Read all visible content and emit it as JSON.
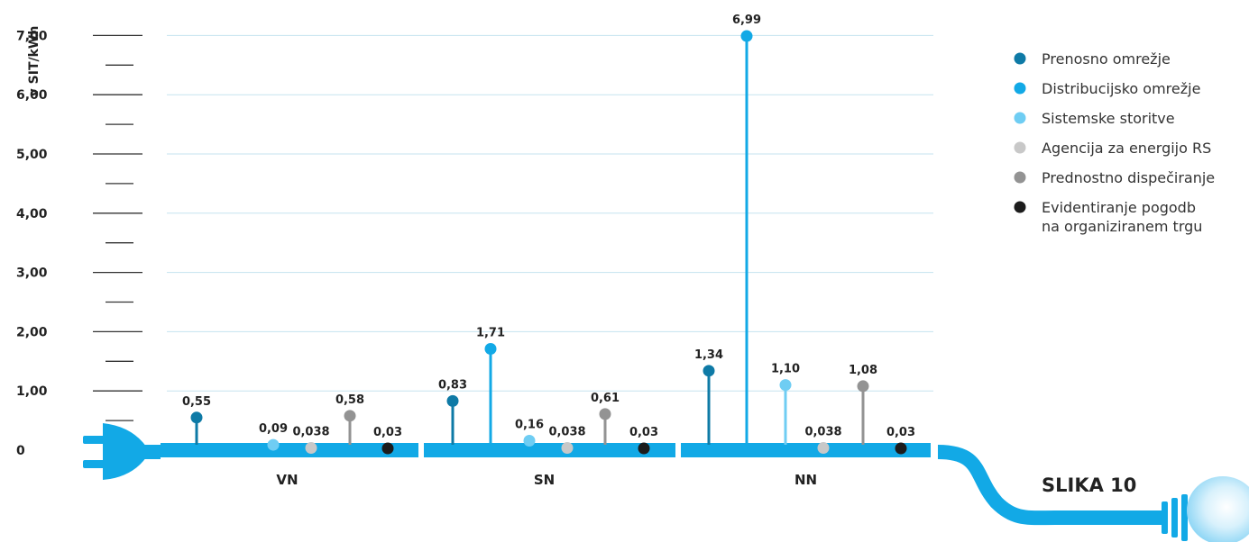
{
  "chart_data": {
    "type": "lollipop",
    "ylabel": "v SIT/kWh",
    "ylim": [
      0,
      7
    ],
    "yticks": [
      {
        "value": 0,
        "label": "0"
      },
      {
        "value": 1,
        "label": "1,00"
      },
      {
        "value": 2,
        "label": "2,00"
      },
      {
        "value": 3,
        "label": "3,00"
      },
      {
        "value": 4,
        "label": "4,00"
      },
      {
        "value": 5,
        "label": "5,00"
      },
      {
        "value": 6,
        "label": "6,00"
      },
      {
        "value": 7,
        "label": "7,00"
      }
    ],
    "grid": true,
    "legend_position": "top-right",
    "categories": [
      "VN",
      "SN",
      "NN"
    ],
    "series": [
      {
        "name": "Prenosno omrežje",
        "color": "#0e7aa6",
        "values": [
          0.55,
          0.83,
          1.34
        ],
        "labels": [
          "0,55",
          "0,83",
          "1,34"
        ]
      },
      {
        "name": "Distribucijsko omrežje",
        "color": "#12a9e6",
        "values": [
          null,
          1.71,
          6.99
        ],
        "labels": [
          "",
          "1,71",
          "6,99"
        ]
      },
      {
        "name": "Sistemske storitve",
        "color": "#6fcdf3",
        "values": [
          0.09,
          0.16,
          1.1
        ],
        "labels": [
          "0,09",
          "0,16",
          "1,10"
        ]
      },
      {
        "name": "Agencija za energijo RS",
        "color": "#c8c8c8",
        "values": [
          0.038,
          0.038,
          0.038
        ],
        "labels": [
          "0,038",
          "0,038",
          "0,038"
        ]
      },
      {
        "name": "Prednostno dispečiranje",
        "color": "#939393",
        "values": [
          0.58,
          0.61,
          1.08
        ],
        "labels": [
          "0,58",
          "0,61",
          "1,08"
        ]
      },
      {
        "name": "Evidentiranje pogodb\nna organiziranem trgu",
        "color": "#1c1c1c",
        "values": [
          0.03,
          0.03,
          0.03
        ],
        "labels": [
          "0,03",
          "0,03",
          "0,03"
        ]
      }
    ]
  },
  "figure_label": "SLIKA 10",
  "colors": {
    "cable": "#12a9e6",
    "grid": "#c5e3ef",
    "tick_line": "#333333"
  }
}
